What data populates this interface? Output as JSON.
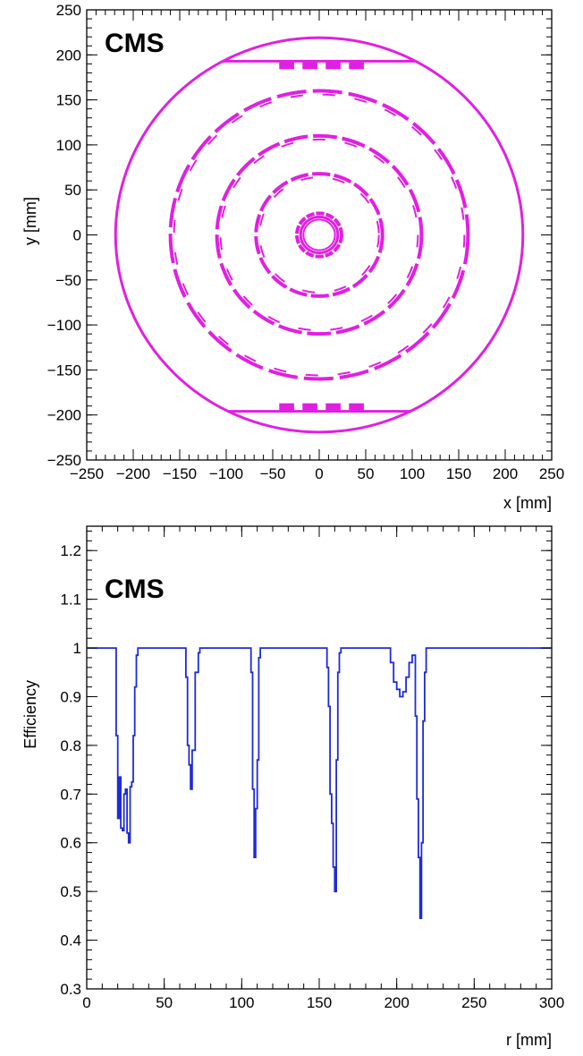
{
  "chart_data": [
    {
      "type": "scatter",
      "label": "CMS",
      "xlabel": "x [mm]",
      "ylabel": "y [mm]",
      "xlim": [
        -250,
        250
      ],
      "ylim": [
        -250,
        250
      ],
      "xticks": [
        -250,
        -200,
        -150,
        -100,
        -50,
        0,
        50,
        100,
        150,
        200,
        250
      ],
      "yticks": [
        -250,
        -200,
        -150,
        -100,
        -50,
        0,
        50,
        100,
        150,
        200,
        250
      ],
      "xtick_labels": [
        "−250",
        "−200",
        "−150",
        "−100",
        "−50",
        "0",
        "50",
        "100",
        "150",
        "200",
        "250"
      ],
      "ytick_labels": [
        "−250",
        "−200",
        "−150",
        "−100",
        "−50",
        "0",
        "50",
        "100",
        "150",
        "200",
        "250"
      ],
      "grid": false,
      "color": "#e020e0",
      "rings": [
        {
          "radius_mm": 20,
          "segmented": false
        },
        {
          "radius_mm": 24,
          "segmented": true
        },
        {
          "radius_mm": 68,
          "segmented": true
        },
        {
          "radius_mm": 110,
          "segmented": true
        },
        {
          "radius_mm": 160,
          "segmented": true
        },
        {
          "radius_mm": 219,
          "segmented": false
        }
      ],
      "horizontal_bands_y_mm": [
        193,
        -196
      ]
    },
    {
      "type": "line",
      "label": "CMS",
      "xlabel": "r [mm]",
      "ylabel": "Efficiency",
      "xlim": [
        0,
        300
      ],
      "ylim": [
        0.3,
        1.25
      ],
      "xticks": [
        0,
        50,
        100,
        150,
        200,
        250,
        300
      ],
      "yticks": [
        0.3,
        0.4,
        0.5,
        0.6,
        0.7,
        0.8,
        0.9,
        1,
        1.1,
        1.2
      ],
      "xtick_labels": [
        "0",
        "50",
        "100",
        "150",
        "200",
        "250",
        "300"
      ],
      "ytick_labels": [
        "0.3",
        "0.4",
        "0.5",
        "0.6",
        "0.7",
        "0.8",
        "0.9",
        "1",
        "1.1",
        "1.2"
      ],
      "grid": false,
      "color": "#1f2bd6",
      "series": [
        {
          "r": [
            0,
            19,
            20,
            21,
            22,
            23,
            24,
            25,
            26,
            27,
            28,
            29,
            30,
            31,
            32,
            33,
            34,
            35,
            36,
            40,
            64,
            65,
            66,
            67,
            68,
            69,
            70,
            72,
            73,
            74,
            75,
            106,
            107,
            108,
            109,
            110,
            111,
            112,
            113,
            114,
            155,
            156,
            157,
            158,
            159,
            160,
            161,
            162,
            163,
            164,
            165,
            194,
            196,
            198,
            200,
            202,
            204,
            206,
            208,
            210,
            212,
            213,
            214,
            215,
            216,
            217,
            218,
            219,
            220,
            221,
            222,
            223,
            300
          ],
          "efficiency": [
            1.0,
            0.82,
            0.65,
            0.735,
            0.63,
            0.625,
            0.7,
            0.71,
            0.62,
            0.6,
            0.715,
            0.725,
            0.82,
            0.92,
            0.985,
            1.0,
            1.0,
            1.0,
            1.0,
            1.0,
            0.94,
            0.8,
            0.76,
            0.71,
            0.79,
            0.79,
            0.95,
            0.99,
            1.0,
            1.0,
            1.0,
            0.95,
            0.71,
            0.57,
            0.67,
            0.77,
            0.98,
            1.0,
            1.0,
            1.0,
            0.96,
            0.88,
            0.7,
            0.64,
            0.55,
            0.5,
            0.77,
            0.95,
            0.99,
            1.0,
            1.0,
            1.0,
            0.97,
            0.93,
            0.915,
            0.9,
            0.91,
            0.94,
            0.97,
            0.985,
            0.86,
            0.69,
            0.57,
            0.445,
            0.6,
            0.85,
            0.95,
            1.0,
            1.0,
            1.0,
            1.0,
            1.0,
            1.0
          ]
        }
      ]
    }
  ]
}
